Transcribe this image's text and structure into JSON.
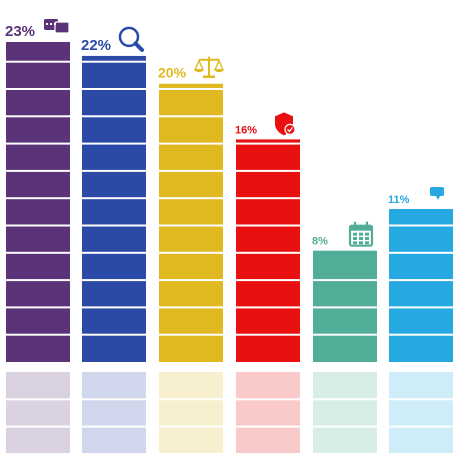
{
  "chart_data": {
    "type": "bar",
    "title": "",
    "xlabel": "",
    "ylabel": "",
    "ylim": [
      0,
      23
    ],
    "categories": [
      "",
      "",
      "",
      "",
      "",
      ""
    ],
    "values": [
      23,
      22,
      20,
      16,
      8,
      11
    ],
    "labels": [
      "23%",
      "22%",
      "20%",
      "16%",
      "8%",
      "11%"
    ],
    "colors": [
      "#5b3378",
      "#2b4aa8",
      "#e0b820",
      "#e81010",
      "#52ad98",
      "#26a8e2"
    ],
    "icons": [
      "chat-bubbles-icon",
      "magnifier-icon",
      "scales-icon",
      "shield-check-icon",
      "calendar-icon",
      "speech-bubble-icon"
    ],
    "reflection": true,
    "grid": false,
    "legend": "none"
  }
}
